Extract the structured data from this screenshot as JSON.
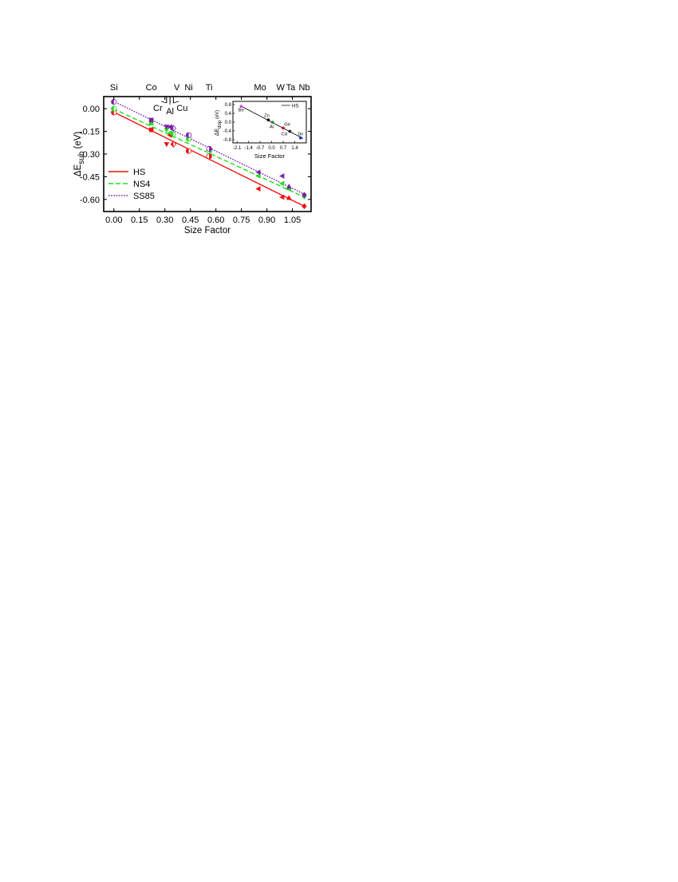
{
  "chart_data": [
    {
      "type": "scatter",
      "xlabel": "Size Factor",
      "ylabel_prefix": "ΔE",
      "ylabel_sub": "sub",
      "ylabel_unit": " (eV)",
      "xlim": [
        -0.06,
        1.16
      ],
      "ylim": [
        -0.68,
        0.08
      ],
      "xticks": [
        0.0,
        0.15,
        0.3,
        0.45,
        0.6,
        0.75,
        0.9,
        1.05
      ],
      "xtick_labels": [
        "0.00",
        "0.15",
        "0.30",
        "0.45",
        "0.60",
        "0.75",
        "0.90",
        "1.05"
      ],
      "yticks": [
        0.0,
        -0.15,
        -0.3,
        -0.45,
        -0.6
      ],
      "ytick_labels": [
        "0.00",
        "-0.15",
        "-0.30",
        "-0.45",
        "-0.60"
      ],
      "top_elements": [
        {
          "label": "Si",
          "x": 0.0
        },
        {
          "label": "Co",
          "x": 0.22
        },
        {
          "label": "V",
          "x": 0.37
        },
        {
          "label": "Ni",
          "x": 0.44
        },
        {
          "label": "Ti",
          "x": 0.56
        },
        {
          "label": "Mo",
          "x": 0.86
        },
        {
          "label": "W",
          "x": 0.98
        },
        {
          "label": "Ta",
          "x": 1.04
        },
        {
          "label": "Nb",
          "x": 1.12
        }
      ],
      "callout_elements": [
        {
          "label": "Cr",
          "x": 0.31
        },
        {
          "label": "Al",
          "x": 0.33
        },
        {
          "label": "Cu",
          "x": 0.35
        }
      ],
      "legend_position": "bottom-left",
      "series": [
        {
          "name": "HS",
          "color": "#ee1111",
          "line_style": "solid",
          "fit": [
            [
              -0.005,
              -0.02
            ],
            [
              1.12,
              -0.645
            ]
          ],
          "points": [
            {
              "x": 0.0,
              "y": -0.025,
              "m": "circle-left"
            },
            {
              "x": 0.22,
              "y": -0.14,
              "m": "square"
            },
            {
              "x": 0.31,
              "y": -0.235,
              "m": "triangle-down"
            },
            {
              "x": 0.33,
              "y": -0.175,
              "m": "triangle-left"
            },
            {
              "x": 0.35,
              "y": -0.235,
              "m": "diamond-half"
            },
            {
              "x": 0.44,
              "y": -0.28,
              "m": "circle-left"
            },
            {
              "x": 0.56,
              "y": -0.315,
              "m": "circle-right"
            },
            {
              "x": 0.85,
              "y": -0.53,
              "m": "triangle-left"
            },
            {
              "x": 0.99,
              "y": -0.585,
              "m": "triangle-left"
            },
            {
              "x": 1.03,
              "y": -0.59,
              "m": "triangle-up"
            },
            {
              "x": 1.12,
              "y": -0.645,
              "m": "diamond"
            }
          ]
        },
        {
          "name": "NS4",
          "color": "#22dd22",
          "line_style": "dashed",
          "fit": [
            [
              -0.005,
              0.0
            ],
            [
              1.12,
              -0.585
            ]
          ],
          "points": [
            {
              "x": 0.0,
              "y": 0.0,
              "m": "circle-left"
            },
            {
              "x": 0.22,
              "y": -0.095,
              "m": "square"
            },
            {
              "x": 0.31,
              "y": -0.14,
              "m": "triangle-down"
            },
            {
              "x": 0.33,
              "y": -0.16,
              "m": "triangle-left"
            },
            {
              "x": 0.35,
              "y": -0.17,
              "m": "diamond-half"
            },
            {
              "x": 0.44,
              "y": -0.2,
              "m": "circle-left"
            },
            {
              "x": 0.56,
              "y": -0.28,
              "m": "circle-right"
            },
            {
              "x": 0.85,
              "y": -0.445,
              "m": "triangle-left"
            },
            {
              "x": 0.99,
              "y": -0.495,
              "m": "triangle-left"
            },
            {
              "x": 1.03,
              "y": -0.525,
              "m": "triangle-up"
            },
            {
              "x": 1.12,
              "y": -0.58,
              "m": "diamond"
            }
          ]
        },
        {
          "name": "SS85",
          "color": "#7a1fa8",
          "line_style": "dotted",
          "fit": [
            [
              -0.005,
              0.05
            ],
            [
              1.12,
              -0.565
            ]
          ],
          "points": [
            {
              "x": 0.0,
              "y": 0.045,
              "m": "circle-left"
            },
            {
              "x": 0.22,
              "y": -0.075,
              "m": "square"
            },
            {
              "x": 0.31,
              "y": -0.12,
              "m": "triangle-down"
            },
            {
              "x": 0.33,
              "y": -0.12,
              "m": "triangle-left"
            },
            {
              "x": 0.35,
              "y": -0.13,
              "m": "diamond-half"
            },
            {
              "x": 0.44,
              "y": -0.175,
              "m": "circle-left"
            },
            {
              "x": 0.56,
              "y": -0.265,
              "m": "circle-right"
            },
            {
              "x": 0.85,
              "y": -0.42,
              "m": "triangle-left"
            },
            {
              "x": 0.99,
              "y": -0.445,
              "m": "triangle-left"
            },
            {
              "x": 1.03,
              "y": -0.515,
              "m": "triangle-up"
            },
            {
              "x": 1.12,
              "y": -0.57,
              "m": "diamond"
            }
          ]
        }
      ]
    },
    {
      "type": "scatter",
      "inset": true,
      "xlabel": "Size Factor",
      "ylabel_prefix": "ΔE",
      "ylabel_sub": "dop",
      "ylabel_unit": " (eV)",
      "xlim": [
        -2.35,
        2.1
      ],
      "ylim": [
        -0.95,
        0.95
      ],
      "xticks": [
        -2.1,
        -1.4,
        -0.7,
        0.0,
        0.7,
        1.4
      ],
      "xtick_labels": [
        "-2.1",
        "-1.4",
        "-0.7",
        "0.0",
        "0.7",
        "1.4"
      ],
      "yticks": [
        0.8,
        0.4,
        0.0,
        -0.4,
        -0.8
      ],
      "ytick_labels": [
        "0.8",
        "0.4",
        "0.0",
        "-0.4",
        "-0.8"
      ],
      "legend": "HS",
      "line": [
        [
          -1.9,
          0.75
        ],
        [
          1.9,
          -0.75
        ]
      ],
      "points": [
        {
          "label": "Be",
          "x": -1.85,
          "y": 0.72,
          "color": "#c84fd0"
        },
        {
          "label": "Zn",
          "x": -0.2,
          "y": 0.1,
          "color": "#000000"
        },
        {
          "label": "Al",
          "x": 0.05,
          "y": -0.01,
          "color": "#2a8a2a"
        },
        {
          "label": "Ge",
          "x": 0.7,
          "y": -0.27,
          "color": "#dd1111"
        },
        {
          "label": "Cd",
          "x": 1.1,
          "y": -0.42,
          "color": "#222222"
        },
        {
          "label": "Sn",
          "x": 1.75,
          "y": -0.72,
          "color": "#2233cc"
        }
      ]
    }
  ]
}
